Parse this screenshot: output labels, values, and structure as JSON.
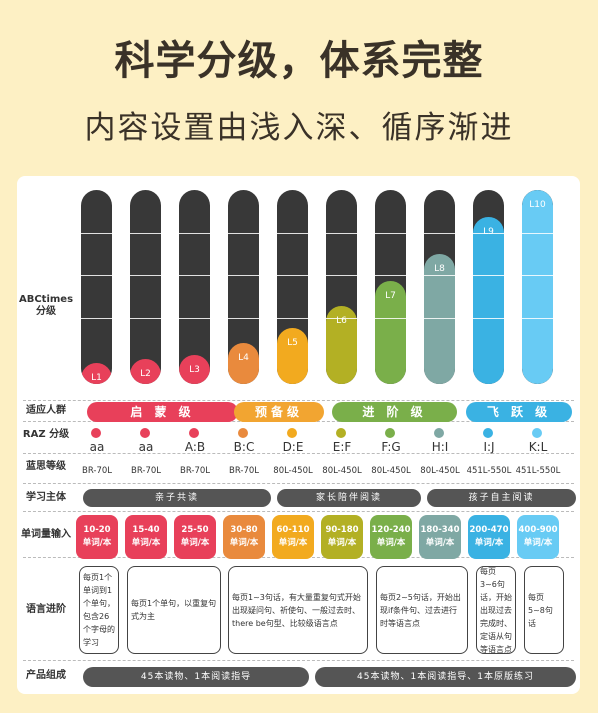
{
  "title": "科学分级，体系完整",
  "subtitle": "内容设置由浅入深、循序渐进",
  "row_labels": {
    "abc": "ABCtimes\n分级",
    "audience": "适应人群",
    "raz": "RAZ 分级",
    "lexile": "蓝思等级",
    "subject": "学习主体",
    "vocab": "单词量输入",
    "language": "语言进阶",
    "product": "产品组成"
  },
  "levels": [
    {
      "label": "L1",
      "fill": 0.11,
      "color": "#e8405a"
    },
    {
      "label": "L2",
      "fill": 0.13,
      "color": "#e8405a"
    },
    {
      "label": "L3",
      "fill": 0.15,
      "color": "#e8405a"
    },
    {
      "label": "L4",
      "fill": 0.21,
      "color": "#e98a3d"
    },
    {
      "label": "L5",
      "fill": 0.29,
      "color": "#f2aa1f"
    },
    {
      "label": "L6",
      "fill": 0.4,
      "color": "#b3b024"
    },
    {
      "label": "L7",
      "fill": 0.53,
      "color": "#7aaf4a"
    },
    {
      "label": "L8",
      "fill": 0.67,
      "color": "#7fa8a4"
    },
    {
      "label": "L9",
      "fill": 0.86,
      "color": "#3ab2e3"
    },
    {
      "label": "L10",
      "fill": 1.0,
      "color": "#68cbf4"
    }
  ],
  "audience": [
    {
      "label": "启 蒙 级",
      "color": "#e8405a"
    },
    {
      "label": "预备级",
      "color": "#f2a531"
    },
    {
      "label": "进 阶 级",
      "color": "#7aaf4a"
    },
    {
      "label": "飞 跃 级",
      "color": "#3ab2e3"
    }
  ],
  "raz": [
    "aa",
    "aa",
    "A:B",
    "B:C",
    "D:E",
    "E:F",
    "F:G",
    "H:I",
    "I:J",
    "K:L"
  ],
  "lexile": [
    "BR-70L",
    "BR-70L",
    "BR-70L",
    "BR-70L",
    "80L-450L",
    "80L-450L",
    "80L-450L",
    "80L-450L",
    "451L-550L",
    "451L-550L"
  ],
  "subjects": [
    "亲子共读",
    "家长陪伴阅读",
    "孩子自主阅读"
  ],
  "vocab": [
    {
      "range": "10-20",
      "unit": "单词/本",
      "color": "#e8405a"
    },
    {
      "range": "15-40",
      "unit": "单词/本",
      "color": "#e8405a"
    },
    {
      "range": "25-50",
      "unit": "单词/本",
      "color": "#e8405a"
    },
    {
      "range": "30-80",
      "unit": "单词/本",
      "color": "#e98a3d"
    },
    {
      "range": "60-110",
      "unit": "单词/本",
      "color": "#f2aa1f"
    },
    {
      "range": "90-180",
      "unit": "单词/本",
      "color": "#b3b024"
    },
    {
      "range": "120-240",
      "unit": "单词/本",
      "color": "#7aaf4a"
    },
    {
      "range": "180-340",
      "unit": "单词/本",
      "color": "#7fa8a4"
    },
    {
      "range": "200-470",
      "unit": "单词/本",
      "color": "#3ab2e3"
    },
    {
      "range": "400-900",
      "unit": "单词/本",
      "color": "#68cbf4"
    }
  ],
  "language": [
    "每页1个单词到1个单句，包含26个字母的学习",
    "每页1个单句，以重复句式为主",
    "每页1~3句话，有大量重复句式开始出现疑问句、祈使句、一般过去时、there be句型、比较级语言点",
    "每页2~5句话，开始出现if条件句、过去进行时等语言点",
    "每页3~6句话，开始出现过去完成时、定语从句等语言点",
    "每页5~8句话"
  ],
  "products": [
    "45本读物、1本阅读指导",
    "45本读物、1本阅读指导、1本原版练习"
  ]
}
